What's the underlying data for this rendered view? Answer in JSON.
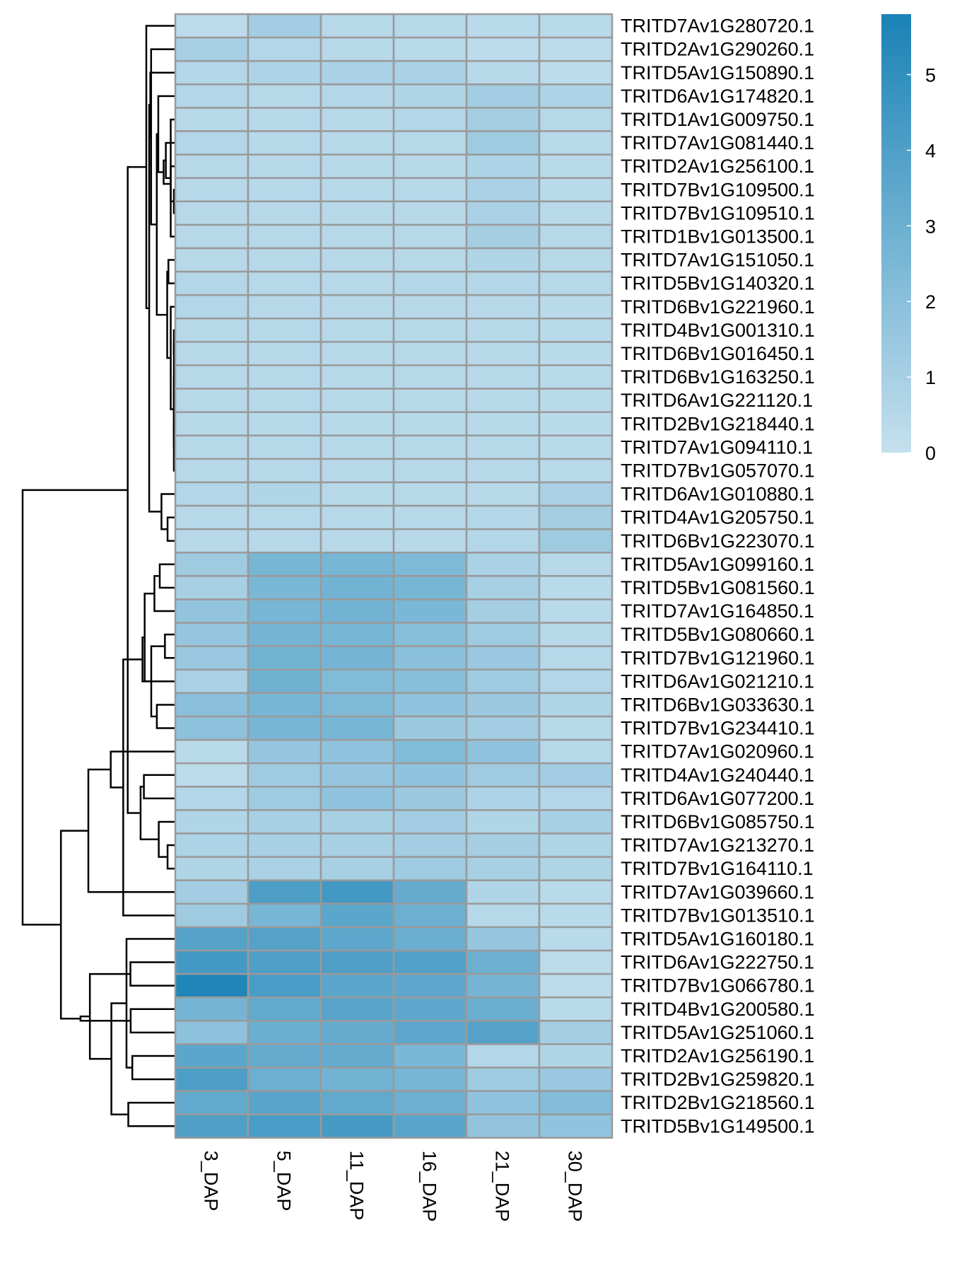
{
  "chart_data": {
    "type": "heatmap",
    "title": "",
    "xlabel": "",
    "ylabel": "",
    "columns": [
      "3_DAP",
      "5_DAP",
      "11_DAP",
      "16_DAP",
      "21_DAP",
      "30_DAP"
    ],
    "rows": [
      "TRITD7Av1G280720.1",
      "TRITD2Av1G290260.1",
      "TRITD5Av1G150890.1",
      "TRITD6Av1G174820.1",
      "TRITD1Av1G009750.1",
      "TRITD7Av1G081440.1",
      "TRITD2Av1G256100.1",
      "TRITD7Bv1G109500.1",
      "TRITD7Bv1G109510.1",
      "TRITD1Bv1G013500.1",
      "TRITD7Av1G151050.1",
      "TRITD5Bv1G140320.1",
      "TRITD6Bv1G221960.1",
      "TRITD4Bv1G001310.1",
      "TRITD6Bv1G016450.1",
      "TRITD6Bv1G163250.1",
      "TRITD6Av1G221120.1",
      "TRITD2Bv1G218440.1",
      "TRITD7Av1G094110.1",
      "TRITD7Bv1G057070.1",
      "TRITD6Av1G010880.1",
      "TRITD4Av1G205750.1",
      "TRITD6Bv1G223070.1",
      "TRITD5Av1G099160.1",
      "TRITD5Bv1G081560.1",
      "TRITD7Av1G164850.1",
      "TRITD5Bv1G080660.1",
      "TRITD7Bv1G121960.1",
      "TRITD6Av1G021210.1",
      "TRITD6Bv1G033630.1",
      "TRITD7Bv1G234410.1",
      "TRITD7Av1G020960.1",
      "TRITD4Av1G240440.1",
      "TRITD6Av1G077200.1",
      "TRITD6Bv1G085750.1",
      "TRITD7Av1G213270.1",
      "TRITD7Bv1G164110.1",
      "TRITD7Av1G039660.1",
      "TRITD7Bv1G013510.1",
      "TRITD5Av1G160180.1",
      "TRITD6Av1G222750.1",
      "TRITD7Bv1G066780.1",
      "TRITD4Bv1G200580.1",
      "TRITD5Av1G251060.1",
      "TRITD2Av1G256190.1",
      "TRITD2Bv1G259820.1",
      "TRITD2Bv1G218560.1",
      "TRITD5Bv1G149500.1"
    ],
    "values": [
      [
        0.3,
        1.2,
        0.5,
        0.5,
        0.4,
        0.4
      ],
      [
        1.0,
        0.6,
        0.5,
        0.4,
        0.3,
        0.3
      ],
      [
        0.6,
        0.8,
        0.9,
        0.9,
        0.5,
        0.3
      ],
      [
        0.6,
        0.5,
        0.6,
        0.7,
        1.2,
        0.8
      ],
      [
        0.5,
        0.5,
        0.5,
        0.6,
        1.1,
        0.5
      ],
      [
        0.6,
        0.5,
        0.5,
        0.5,
        1.3,
        0.4
      ],
      [
        0.5,
        0.5,
        0.5,
        0.5,
        0.8,
        0.4
      ],
      [
        0.5,
        0.5,
        0.5,
        0.5,
        0.9,
        0.4
      ],
      [
        0.5,
        0.5,
        0.5,
        0.5,
        0.9,
        0.4
      ],
      [
        0.5,
        0.5,
        0.5,
        0.5,
        1.1,
        0.5
      ],
      [
        0.5,
        0.5,
        0.5,
        0.5,
        0.7,
        0.5
      ],
      [
        0.6,
        0.5,
        0.5,
        0.6,
        0.6,
        0.5
      ],
      [
        0.6,
        0.5,
        0.5,
        0.5,
        0.5,
        0.4
      ],
      [
        0.5,
        0.5,
        0.5,
        0.5,
        0.5,
        0.4
      ],
      [
        0.5,
        0.5,
        0.5,
        0.5,
        0.5,
        0.4
      ],
      [
        0.5,
        0.5,
        0.5,
        0.5,
        0.5,
        0.4
      ],
      [
        0.5,
        0.5,
        0.5,
        0.5,
        0.5,
        0.4
      ],
      [
        0.5,
        0.5,
        0.5,
        0.5,
        0.5,
        0.4
      ],
      [
        0.5,
        0.5,
        0.5,
        0.5,
        0.5,
        0.4
      ],
      [
        0.5,
        0.5,
        0.5,
        0.5,
        0.5,
        0.4
      ],
      [
        0.6,
        0.7,
        0.5,
        0.5,
        0.5,
        0.9
      ],
      [
        0.5,
        0.5,
        0.5,
        0.5,
        0.6,
        1.1
      ],
      [
        0.5,
        0.5,
        0.5,
        0.5,
        0.6,
        1.3
      ],
      [
        1.3,
        2.6,
        2.6,
        2.4,
        0.9,
        0.5
      ],
      [
        1.0,
        2.5,
        2.8,
        2.6,
        1.0,
        0.4
      ],
      [
        1.7,
        2.6,
        2.8,
        2.5,
        1.1,
        0.4
      ],
      [
        1.6,
        2.7,
        2.6,
        2.1,
        1.3,
        0.5
      ],
      [
        1.5,
        2.8,
        2.7,
        2.0,
        1.5,
        0.5
      ],
      [
        0.9,
        2.9,
        2.3,
        2.1,
        1.3,
        0.6
      ],
      [
        2.0,
        2.6,
        2.4,
        1.8,
        1.4,
        0.7
      ],
      [
        1.9,
        2.6,
        2.6,
        1.4,
        1.2,
        0.5
      ],
      [
        0.4,
        1.6,
        1.8,
        2.3,
        1.8,
        0.5
      ],
      [
        0.3,
        1.3,
        1.6,
        1.8,
        1.3,
        1.2
      ],
      [
        0.6,
        1.3,
        1.8,
        1.4,
        0.8,
        0.6
      ],
      [
        0.7,
        1.0,
        1.0,
        1.2,
        0.7,
        1.0
      ],
      [
        0.8,
        1.0,
        1.0,
        1.2,
        1.1,
        0.7
      ],
      [
        0.7,
        0.9,
        1.0,
        1.3,
        1.0,
        0.7
      ],
      [
        1.2,
        4.1,
        4.4,
        3.2,
        0.7,
        0.4
      ],
      [
        1.3,
        2.6,
        3.6,
        3.0,
        0.5,
        0.4
      ],
      [
        3.8,
        3.8,
        3.5,
        3.1,
        1.6,
        0.4
      ],
      [
        4.4,
        4.0,
        4.0,
        3.9,
        3.0,
        0.3
      ],
      [
        5.6,
        4.2,
        3.6,
        3.5,
        2.7,
        0.3
      ],
      [
        2.7,
        3.4,
        3.7,
        3.5,
        3.1,
        0.4
      ],
      [
        1.9,
        3.1,
        3.3,
        3.5,
        3.8,
        1.1
      ],
      [
        3.6,
        3.3,
        3.3,
        2.5,
        0.6,
        0.7
      ],
      [
        4.1,
        3.0,
        2.8,
        2.6,
        1.3,
        1.5
      ],
      [
        3.4,
        3.7,
        3.4,
        3.0,
        1.8,
        2.2
      ],
      [
        4.0,
        4.2,
        4.3,
        3.7,
        1.7,
        1.8
      ]
    ],
    "color_scale": {
      "min": 0,
      "max": 5.8,
      "low_color": "#c5e0ee",
      "high_color": "#1a82b6",
      "ticks": [
        0,
        1,
        2,
        3,
        4,
        5
      ]
    },
    "cell_border_color": "#9a9a9a",
    "row_dendrogram": true,
    "legend_position": "right"
  }
}
